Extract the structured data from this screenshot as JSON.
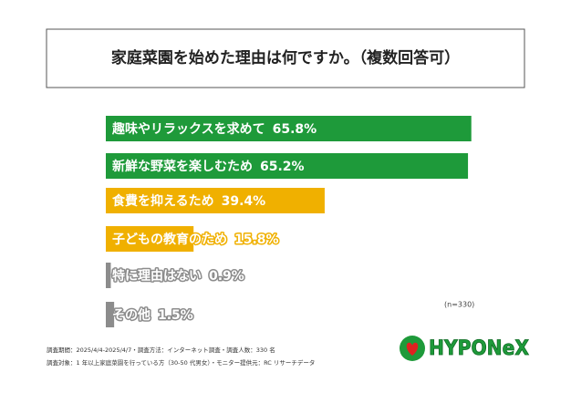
{
  "chart_data": {
    "type": "bar",
    "orientation": "horizontal",
    "title": "家庭菜園を始めた理由は何ですか。（複数回答可）",
    "categories": [
      "趣味やリラックスを求めて",
      "新鮮な野菜を楽しむため",
      "食費を抑えるため",
      "子どもの教育のため",
      "特に理由はない",
      "その他"
    ],
    "values": [
      65.8,
      65.2,
      39.4,
      15.8,
      0.9,
      1.5
    ],
    "value_labels": [
      "65.8%",
      "65.2%",
      "39.4%",
      "15.8%",
      "0.9%",
      "1.5%"
    ],
    "colors": [
      "#1e9a3a",
      "#1e9a3a",
      "#f0b000",
      "#f0b000",
      "#8c8c8c",
      "#8c8c8c"
    ],
    "sample_note": "(n=330)",
    "footnotes": [
      "調査期間：2025/4/4-2025/4/7・調査方法：インターネット調査・調査人数：330 名",
      "調査対象：1 年以上家庭菜園を行っている方（30-50 代男女）・モニター提供元：RC リサーチデータ"
    ],
    "logo": "HYPONeX"
  }
}
